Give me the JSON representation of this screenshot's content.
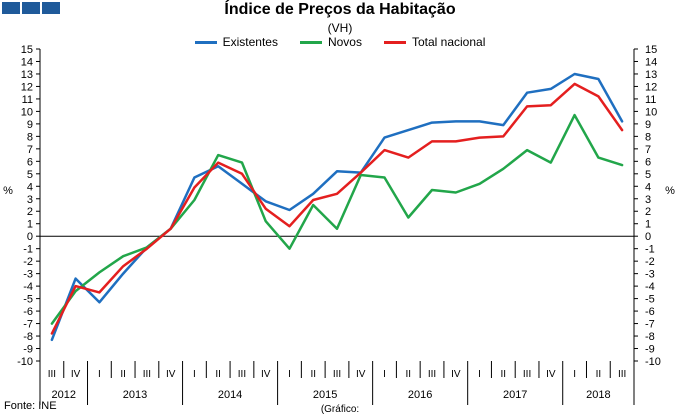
{
  "title": "Índice de Preços da Habitação",
  "subtitle": "(VH)",
  "source": "Fonte: INE",
  "caption": "(Gráfico:",
  "chart_data": {
    "type": "line",
    "title": "Índice de Preços da Habitação",
    "subtitle": "(VH)",
    "ylabel": "%",
    "ylabel_right": "%",
    "ylim": [
      -10,
      15
    ],
    "yticks": [
      15,
      14,
      13,
      12,
      11,
      10,
      9,
      8,
      7,
      6,
      5,
      4,
      3,
      2,
      1,
      0,
      -1,
      -2,
      -3,
      -4,
      -5,
      -6,
      -7,
      -8,
      -9,
      -10
    ],
    "grid": false,
    "legend_position": "top-center",
    "quarters": [
      "III",
      "IV",
      "I",
      "II",
      "III",
      "IV",
      "I",
      "II",
      "III",
      "IV",
      "I",
      "II",
      "III",
      "IV",
      "I",
      "II",
      "III",
      "IV",
      "I",
      "II",
      "III",
      "IV",
      "I",
      "II",
      "III"
    ],
    "years": [
      {
        "label": "2012",
        "span": 2
      },
      {
        "label": "2013",
        "span": 4
      },
      {
        "label": "2014",
        "span": 4
      },
      {
        "label": "2015",
        "span": 4
      },
      {
        "label": "2016",
        "span": 4
      },
      {
        "label": "2017",
        "span": 4
      },
      {
        "label": "2018",
        "span": 3
      }
    ],
    "series": [
      {
        "name": "Existentes",
        "color": "#1f6fc0",
        "values": [
          -8.3,
          -3.4,
          -5.3,
          -3.0,
          -0.9,
          0.6,
          4.7,
          5.6,
          4.2,
          2.8,
          2.1,
          3.4,
          5.2,
          5.1,
          7.9,
          8.5,
          9.1,
          9.2,
          9.2,
          8.9,
          11.5,
          11.8,
          13.0,
          12.6,
          9.2
        ]
      },
      {
        "name": "Novos",
        "color": "#22a64a",
        "values": [
          -7.0,
          -4.4,
          -2.9,
          -1.6,
          -0.9,
          0.6,
          2.9,
          6.5,
          5.9,
          1.2,
          -1.0,
          2.5,
          0.6,
          4.9,
          4.7,
          1.5,
          3.7,
          3.5,
          4.2,
          5.4,
          6.9,
          5.9,
          9.7,
          6.3,
          5.7
        ]
      },
      {
        "name": "Total nacional",
        "color": "#e41f1f",
        "values": [
          -7.8,
          -4.0,
          -4.5,
          -2.4,
          -1.0,
          0.6,
          3.9,
          5.9,
          5.0,
          2.2,
          0.8,
          2.9,
          3.4,
          5.1,
          6.9,
          6.3,
          7.6,
          7.6,
          7.9,
          8.0,
          10.4,
          10.5,
          12.2,
          11.2,
          8.5
        ]
      }
    ]
  }
}
